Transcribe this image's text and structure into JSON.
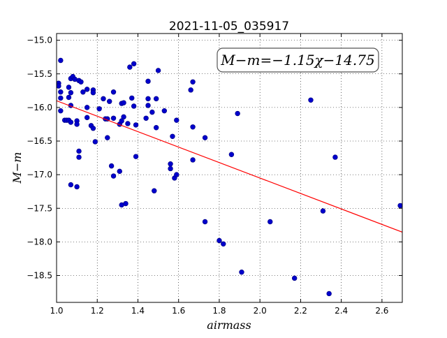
{
  "chart_data": {
    "type": "scatter",
    "title": "2021-11-05_035917",
    "xlabel": "airmass",
    "ylabel": "M−m",
    "annotation": "M−m=−1.15χ−14.75",
    "xlim": [
      1.0,
      2.7
    ],
    "ylim": [
      -18.9,
      -14.9
    ],
    "xticks": [
      1.0,
      1.2,
      1.4,
      1.6,
      1.8,
      2.0,
      2.2,
      2.4,
      2.6
    ],
    "yticks": [
      -15.0,
      -15.5,
      -16.0,
      -16.5,
      -17.0,
      -17.5,
      -18.0,
      -18.5
    ],
    "xtick_labels": [
      "1.0",
      "1.2",
      "1.4",
      "1.6",
      "1.8",
      "2.0",
      "2.2",
      "2.4",
      "2.6"
    ],
    "ytick_labels": [
      "−15.0",
      "−15.5",
      "−16.0",
      "−16.5",
      "−17.0",
      "−17.5",
      "−18.0",
      "−18.5"
    ],
    "grid": true,
    "fit": {
      "slope": -1.15,
      "intercept": -14.75,
      "color": "#ff0000"
    },
    "marker_color": "#0000cc",
    "points": [
      [
        1.01,
        -15.64
      ],
      [
        1.01,
        -15.68
      ],
      [
        1.02,
        -15.3
      ],
      [
        1.02,
        -15.77
      ],
      [
        1.02,
        -15.86
      ],
      [
        1.02,
        -16.05
      ],
      [
        1.04,
        -16.19
      ],
      [
        1.05,
        -16.19
      ],
      [
        1.06,
        -16.19
      ],
      [
        1.06,
        -15.85
      ],
      [
        1.06,
        -15.7
      ],
      [
        1.07,
        -15.57
      ],
      [
        1.07,
        -15.78
      ],
      [
        1.07,
        -15.97
      ],
      [
        1.08,
        -15.54
      ],
      [
        1.07,
        -16.22
      ],
      [
        1.07,
        -17.15
      ],
      [
        1.09,
        -15.58
      ],
      [
        1.1,
        -16.2
      ],
      [
        1.1,
        -16.25
      ],
      [
        1.1,
        -17.18
      ],
      [
        1.11,
        -15.6
      ],
      [
        1.11,
        -16.65
      ],
      [
        1.11,
        -16.74
      ],
      [
        1.12,
        -15.62
      ],
      [
        1.13,
        -15.77
      ],
      [
        1.15,
        -15.73
      ],
      [
        1.15,
        -16.0
      ],
      [
        1.15,
        -16.15
      ],
      [
        1.17,
        -16.27
      ],
      [
        1.18,
        -16.31
      ],
      [
        1.18,
        -15.74
      ],
      [
        1.18,
        -15.78
      ],
      [
        1.19,
        -16.51
      ],
      [
        1.21,
        -16.02
      ],
      [
        1.23,
        -15.87
      ],
      [
        1.24,
        -16.17
      ],
      [
        1.25,
        -16.17
      ],
      [
        1.25,
        -16.45
      ],
      [
        1.26,
        -15.91
      ],
      [
        1.27,
        -16.87
      ],
      [
        1.28,
        -16.16
      ],
      [
        1.28,
        -17.02
      ],
      [
        1.28,
        -15.77
      ],
      [
        1.31,
        -16.25
      ],
      [
        1.31,
        -16.95
      ],
      [
        1.32,
        -16.2
      ],
      [
        1.32,
        -15.94
      ],
      [
        1.33,
        -15.93
      ],
      [
        1.33,
        -16.14
      ],
      [
        1.32,
        -17.45
      ],
      [
        1.34,
        -17.43
      ],
      [
        1.35,
        -16.24
      ],
      [
        1.36,
        -15.4
      ],
      [
        1.37,
        -15.86
      ],
      [
        1.38,
        -15.35
      ],
      [
        1.38,
        -15.98
      ],
      [
        1.39,
        -16.26
      ],
      [
        1.39,
        -16.73
      ],
      [
        1.44,
        -16.16
      ],
      [
        1.45,
        -15.87
      ],
      [
        1.45,
        -15.61
      ],
      [
        1.45,
        -15.97
      ],
      [
        1.47,
        -16.07
      ],
      [
        1.48,
        -17.24
      ],
      [
        1.49,
        -15.87
      ],
      [
        1.49,
        -16.3
      ],
      [
        1.5,
        -15.45
      ],
      [
        1.53,
        -16.05
      ],
      [
        1.56,
        -16.84
      ],
      [
        1.56,
        -16.91
      ],
      [
        1.57,
        -16.43
      ],
      [
        1.58,
        -17.05
      ],
      [
        1.59,
        -16.19
      ],
      [
        1.59,
        -17.0
      ],
      [
        1.66,
        -15.74
      ],
      [
        1.67,
        -15.62
      ],
      [
        1.67,
        -16.29
      ],
      [
        1.67,
        -16.78
      ],
      [
        1.73,
        -16.45
      ],
      [
        1.73,
        -17.7
      ],
      [
        1.8,
        -17.98
      ],
      [
        1.82,
        -18.03
      ],
      [
        1.86,
        -16.7
      ],
      [
        1.89,
        -16.09
      ],
      [
        1.91,
        -18.45
      ],
      [
        2.05,
        -17.7
      ],
      [
        2.17,
        -18.54
      ],
      [
        2.25,
        -15.89
      ],
      [
        2.31,
        -17.54
      ],
      [
        2.34,
        -18.77
      ],
      [
        2.37,
        -16.74
      ],
      [
        2.69,
        -17.46
      ]
    ]
  }
}
